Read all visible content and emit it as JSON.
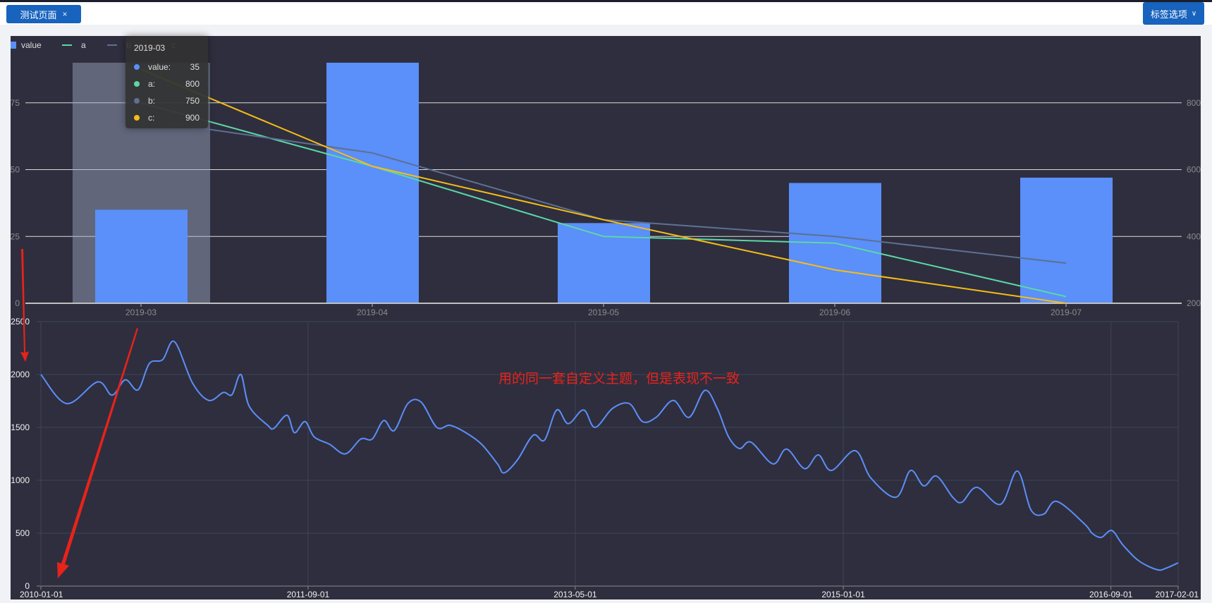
{
  "header": {
    "tab_label": "测试页面",
    "tab_close": "×",
    "options_label": "标签选项",
    "options_chevron": "∨"
  },
  "annotation": "用的同一套自定义主题，但是表现不一致",
  "colors": {
    "value": "#5b8ff9",
    "a": "#5ad8a6",
    "b": "#5d7092",
    "c": "#f6bd16",
    "line": "#5b8ff9",
    "annotation": "#e8231a"
  },
  "tooltip": {
    "title": "2019-03",
    "rows": [
      {
        "name": "value:",
        "value": "35",
        "color": "#5b8ff9"
      },
      {
        "name": "a:",
        "value": "800",
        "color": "#5ad8a6"
      },
      {
        "name": "b:",
        "value": "750",
        "color": "#5d7092"
      },
      {
        "name": "c:",
        "value": "900",
        "color": "#f6bd16"
      }
    ]
  },
  "chart_data": [
    {
      "type": "bar",
      "legend": [
        "value",
        "a",
        "b",
        "c"
      ],
      "legend_position": "top-left",
      "categories": [
        "2019-03",
        "2019-04",
        "2019-05",
        "2019-06",
        "2019-07"
      ],
      "left_axis": {
        "ticks": [
          "0",
          "25",
          "50",
          "75"
        ],
        "ylim": [
          0,
          100
        ]
      },
      "right_axis": {
        "ticks": [
          "200",
          "400",
          "600",
          "800"
        ],
        "ylim": [
          200,
          1000
        ]
      },
      "grid": true,
      "highlighted_category": "2019-03",
      "series": [
        {
          "name": "value",
          "type": "bar",
          "axis": "left",
          "values": [
            35,
            90,
            30,
            45,
            47
          ]
        },
        {
          "name": "a",
          "type": "line",
          "axis": "right",
          "values": [
            800,
            610,
            400,
            380,
            220
          ]
        },
        {
          "name": "b",
          "type": "line",
          "axis": "right",
          "values": [
            750,
            650,
            450,
            400,
            320
          ]
        },
        {
          "name": "c",
          "type": "line",
          "axis": "right",
          "values": [
            900,
            610,
            450,
            300,
            200
          ]
        }
      ]
    },
    {
      "type": "line",
      "smooth": true,
      "grid": true,
      "y_ticks": [
        "0",
        "500",
        "1000",
        "1500",
        "2000",
        "2500"
      ],
      "ylim": [
        0,
        2500
      ],
      "x_ticks": [
        "2010-01-01",
        "2011-09-01",
        "2013-05-01",
        "2015-01-01",
        "2016-09-01",
        "2017-02-01"
      ],
      "xlim": [
        "2010-01-01",
        "2017-02-01"
      ],
      "points": [
        [
          "2010-01-01",
          2000
        ],
        [
          "2010-03-01",
          1725
        ],
        [
          "2010-05-10",
          1930
        ],
        [
          "2010-06-12",
          1805
        ],
        [
          "2010-07-12",
          1950
        ],
        [
          "2010-08-10",
          1855
        ],
        [
          "2010-09-05",
          2105
        ],
        [
          "2010-10-05",
          2140
        ],
        [
          "2010-11-01",
          2310
        ],
        [
          "2010-12-12",
          1920
        ],
        [
          "2011-01-18",
          1755
        ],
        [
          "2011-02-20",
          1830
        ],
        [
          "2011-03-12",
          1810
        ],
        [
          "2011-04-01",
          2000
        ],
        [
          "2011-04-20",
          1700
        ],
        [
          "2011-06-01",
          1520
        ],
        [
          "2011-06-15",
          1490
        ],
        [
          "2011-07-15",
          1615
        ],
        [
          "2011-08-01",
          1450
        ],
        [
          "2011-08-25",
          1555
        ],
        [
          "2011-09-15",
          1410
        ],
        [
          "2011-10-20",
          1340
        ],
        [
          "2011-11-25",
          1250
        ],
        [
          "2011-12-30",
          1390
        ],
        [
          "2012-01-25",
          1390
        ],
        [
          "2012-02-20",
          1565
        ],
        [
          "2012-03-15",
          1470
        ],
        [
          "2012-04-15",
          1725
        ],
        [
          "2012-05-15",
          1740
        ],
        [
          "2012-06-20",
          1500
        ],
        [
          "2012-07-20",
          1520
        ],
        [
          "2012-08-25",
          1450
        ],
        [
          "2012-09-30",
          1340
        ],
        [
          "2012-11-05",
          1155
        ],
        [
          "2012-11-20",
          1070
        ],
        [
          "2012-12-20",
          1190
        ],
        [
          "2013-01-25",
          1425
        ],
        [
          "2013-02-20",
          1380
        ],
        [
          "2013-03-20",
          1665
        ],
        [
          "2013-04-15",
          1535
        ],
        [
          "2013-05-20",
          1665
        ],
        [
          "2013-06-15",
          1500
        ],
        [
          "2013-07-25",
          1680
        ],
        [
          "2013-09-01",
          1725
        ],
        [
          "2013-10-01",
          1555
        ],
        [
          "2013-11-01",
          1595
        ],
        [
          "2013-12-10",
          1755
        ],
        [
          "2014-01-15",
          1595
        ],
        [
          "2014-02-20",
          1850
        ],
        [
          "2014-03-20",
          1680
        ],
        [
          "2014-04-15",
          1410
        ],
        [
          "2014-05-10",
          1300
        ],
        [
          "2014-06-05",
          1360
        ],
        [
          "2014-07-25",
          1155
        ],
        [
          "2014-08-25",
          1295
        ],
        [
          "2014-10-05",
          1110
        ],
        [
          "2014-11-05",
          1240
        ],
        [
          "2014-12-05",
          1093
        ],
        [
          "2015-01-28",
          1280
        ],
        [
          "2015-03-05",
          1020
        ],
        [
          "2015-05-01",
          840
        ],
        [
          "2015-06-03",
          1093
        ],
        [
          "2015-07-03",
          947
        ],
        [
          "2015-08-01",
          1040
        ],
        [
          "2015-09-07",
          840
        ],
        [
          "2015-09-28",
          793
        ],
        [
          "2015-11-01",
          933
        ],
        [
          "2015-12-25",
          773
        ],
        [
          "2016-02-01",
          1087
        ],
        [
          "2016-03-03",
          720
        ],
        [
          "2016-04-01",
          680
        ],
        [
          "2016-05-01",
          800
        ],
        [
          "2016-07-03",
          587
        ],
        [
          "2016-07-20",
          500
        ],
        [
          "2016-08-10",
          460
        ],
        [
          "2016-09-03",
          525
        ],
        [
          "2016-09-28",
          390
        ],
        [
          "2016-11-03",
          240
        ],
        [
          "2016-12-15",
          155
        ],
        [
          "2017-01-05",
          170
        ],
        [
          "2017-02-01",
          220
        ]
      ]
    }
  ]
}
